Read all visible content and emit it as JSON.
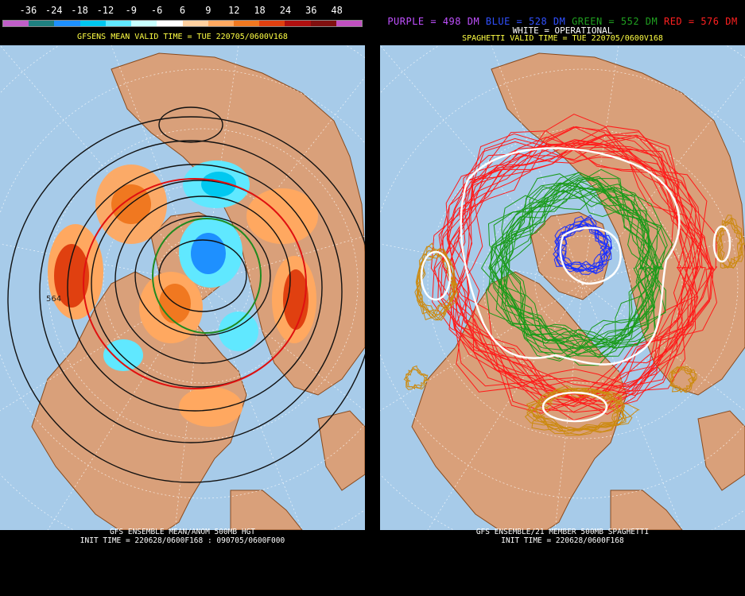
{
  "left": {
    "scale": {
      "labels": [
        "-36",
        "-24",
        "-18",
        "-12",
        "-9",
        "-6",
        "6",
        "9",
        "12",
        "18",
        "24",
        "36",
        "48"
      ],
      "colors": [
        "#c05ec8",
        "#1f8080",
        "#1e90ff",
        "#00c8f0",
        "#60e8ff",
        "#c8ffff",
        "#ffffff",
        "#ffd0a0",
        "#ffa860",
        "#f07820",
        "#e04010",
        "#b01010",
        "#801010",
        "#c050c0"
      ]
    },
    "title": "GFSENS MEAN VALID TIME = TUE 220705/0600V168",
    "map_label": "564",
    "bottom_line1": "GFS ENSEMBLE MEAN/ANOM 500MB HGT",
    "bottom_line2": "INIT TIME = 220628/0600F168 : 090705/0600F000"
  },
  "right": {
    "legend": [
      {
        "text": "PURPLE = 498 DM",
        "color": "#c050ff"
      },
      {
        "text": "BLUE = 528 DM",
        "color": "#3050ff"
      },
      {
        "text": "GREEN = 552 DM",
        "color": "#20a020"
      },
      {
        "text": "RED = 576 DM",
        "color": "#ff2020"
      }
    ],
    "subtitle_white": "WHITE = OPERATIONAL",
    "title": "SPAGHETTI VALID TIME = TUE 220705/0600V168",
    "bottom_line1": "GFS ENSEMBLE/21 MEMBER 500MB SPAGHETTI",
    "bottom_line2": "INIT TIME = 220628/0600F168"
  },
  "colors": {
    "ocean": "#a7cbe9",
    "land": "#d9a07a",
    "coast": "#8a4a1c",
    "grid": "#ffffff"
  }
}
